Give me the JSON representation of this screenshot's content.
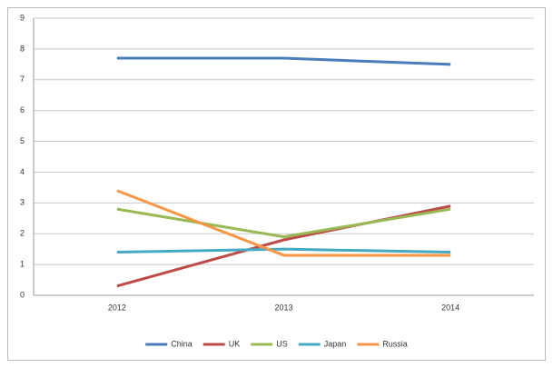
{
  "chart_data": {
    "type": "line",
    "categories": [
      "2012",
      "2013",
      "2014"
    ],
    "series": [
      {
        "name": "China",
        "color": "#4a7ebb",
        "values": [
          7.7,
          7.7,
          7.5
        ]
      },
      {
        "name": "UK",
        "color": "#be4b48",
        "values": [
          0.3,
          1.8,
          2.9
        ]
      },
      {
        "name": "US",
        "color": "#98b954",
        "values": [
          2.8,
          1.9,
          2.8
        ]
      },
      {
        "name": "Japan",
        "color": "#46aac5",
        "values": [
          1.4,
          1.5,
          1.4
        ]
      },
      {
        "name": "Russia",
        "color": "#f79646",
        "values": [
          3.4,
          1.3,
          1.3
        ]
      }
    ],
    "ylim": [
      0,
      9
    ],
    "yticks": [
      0,
      1,
      2,
      3,
      4,
      5,
      6,
      7,
      8,
      9
    ],
    "grid": true,
    "legend": "bottom"
  }
}
